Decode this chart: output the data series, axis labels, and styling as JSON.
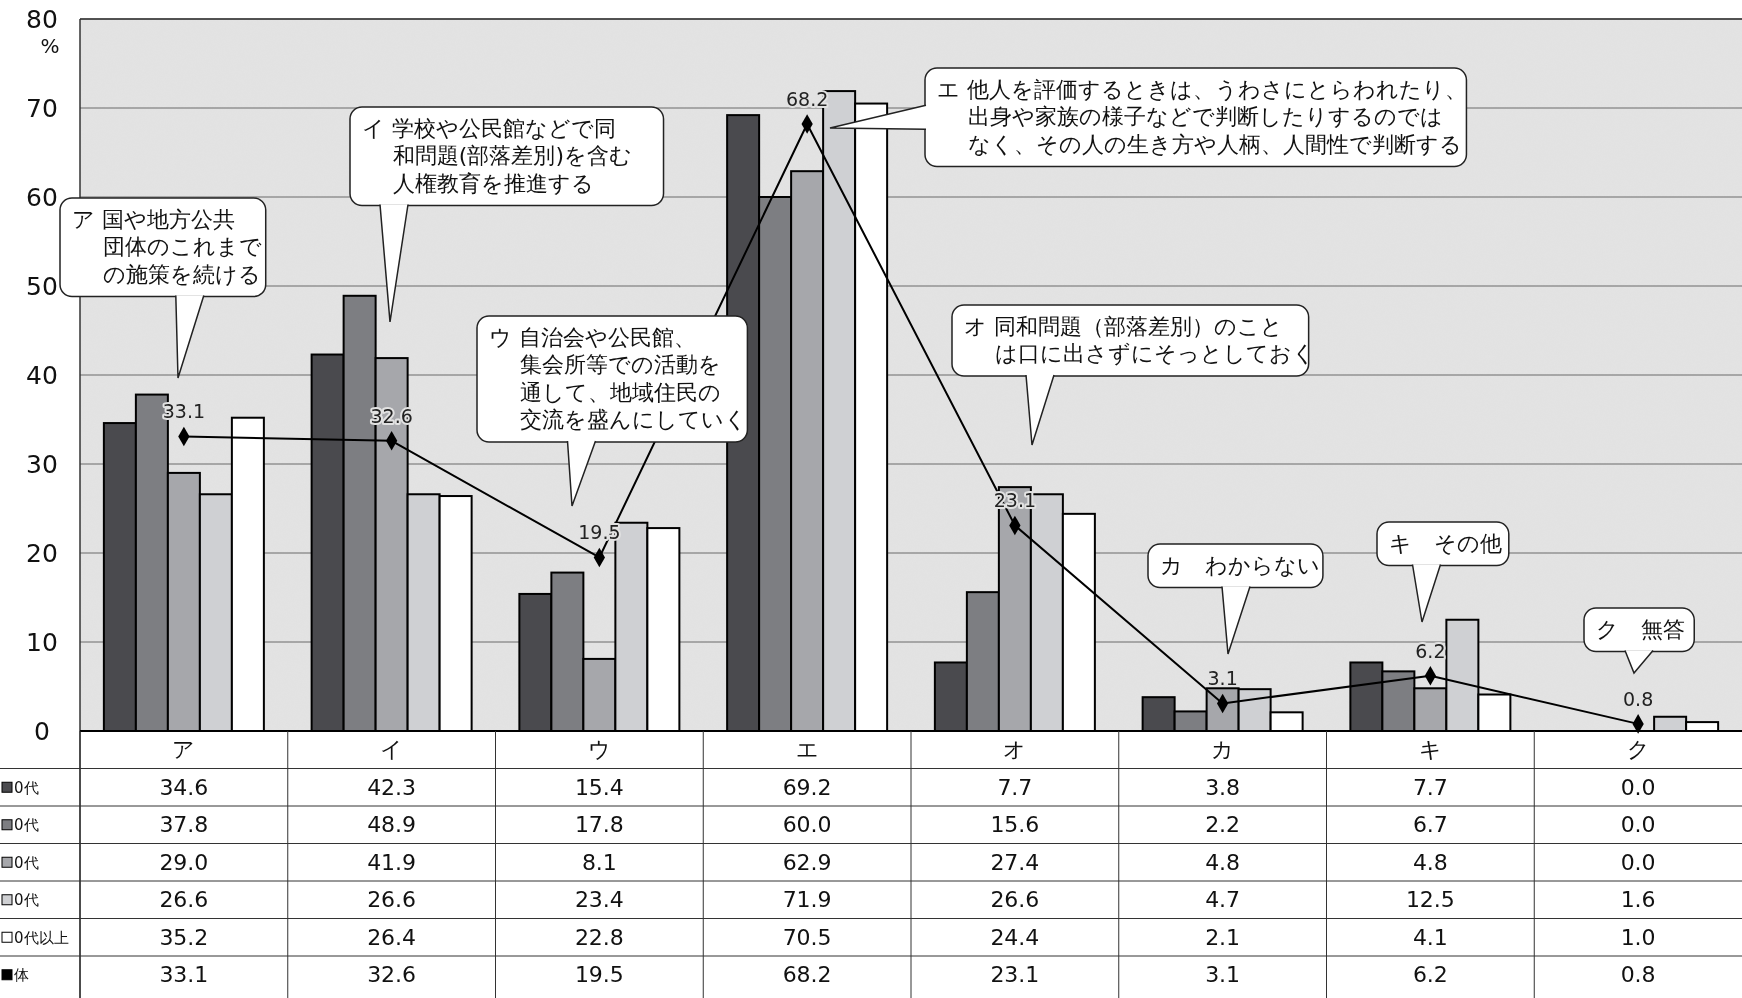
{
  "chart_data": {
    "type": "bar",
    "ylabel": "%",
    "categories": [
      "ア",
      "イ",
      "ウ",
      "エ",
      "オ",
      "カ",
      "キ",
      "ク"
    ],
    "series": [
      {
        "name": "0代",
        "color": "#4a4a4e",
        "values": [
          34.6,
          42.3,
          15.4,
          69.2,
          7.7,
          3.8,
          7.7,
          0.0
        ],
        "value_labels": [
          "34.6",
          "42.3",
          "15.4",
          "69.2",
          "7.7",
          "3.8",
          "7.7",
          "0.0"
        ]
      },
      {
        "name": "0代",
        "color": "#7d7e82",
        "values": [
          37.8,
          48.9,
          17.8,
          60.0,
          15.6,
          2.2,
          6.7,
          0.0
        ],
        "value_labels": [
          "37.8",
          "48.9",
          "17.8",
          "60.0",
          "15.6",
          "2.2",
          "6.7",
          "0.0"
        ]
      },
      {
        "name": "0代",
        "color": "#a6a7ab",
        "values": [
          29.0,
          41.9,
          8.1,
          62.9,
          27.4,
          4.8,
          4.8,
          0.0
        ],
        "value_labels": [
          "29.0",
          "41.9",
          "8.1",
          "62.9",
          "27.4",
          "4.8",
          "4.8",
          "0.0"
        ]
      },
      {
        "name": "0代",
        "color": "#cfd0d3",
        "values": [
          26.6,
          26.6,
          23.4,
          71.9,
          26.6,
          4.7,
          12.5,
          1.6
        ],
        "value_labels": [
          "26.6",
          "26.6",
          "23.4",
          "71.9",
          "26.6",
          "4.7",
          "12.5",
          "1.6"
        ]
      },
      {
        "name": "0代以上",
        "color": "#ffffff",
        "values": [
          35.2,
          26.4,
          22.8,
          70.5,
          24.4,
          2.1,
          4.1,
          1.0
        ],
        "value_labels": [
          "35.2",
          "26.4",
          "22.8",
          "70.5",
          "24.4",
          "2.1",
          "4.1",
          "1.0"
        ]
      },
      {
        "name": "体",
        "color": "#000000",
        "type": "line",
        "marker": "diamond",
        "values": [
          33.1,
          32.6,
          19.5,
          68.2,
          23.1,
          3.1,
          6.2,
          0.8
        ],
        "value_labels": [
          "33.1",
          "32.6",
          "19.5",
          "68.2",
          "23.1",
          "3.1",
          "6.2",
          "0.8"
        ]
      }
    ],
    "ylim": [
      0,
      80
    ],
    "yticks": [
      0,
      10,
      20,
      30,
      40,
      50,
      60,
      70,
      80
    ],
    "grid": "y",
    "legend": "bottom left",
    "annotations": [
      "ア 国や地方公共団体のこれまでの施策を続ける",
      "イ 学校や公民館などで同和問題(部落差別)を含む人権教育を推進する",
      "ウ 自治会や公民館、集会所等での活動を通して、地域住民の交流を盛んにしていく",
      "エ 他人を評価するときは、うわさにとらわれたり、出身や家族の様子などで判断したりするのではなく、その人の生き方や人柄、人間性で判断する",
      "オ 同和問題（部落差別）のことは口に出さずにそっとしておく",
      "カ　わからない",
      "キ　その他",
      "ク　無答"
    ]
  }
}
